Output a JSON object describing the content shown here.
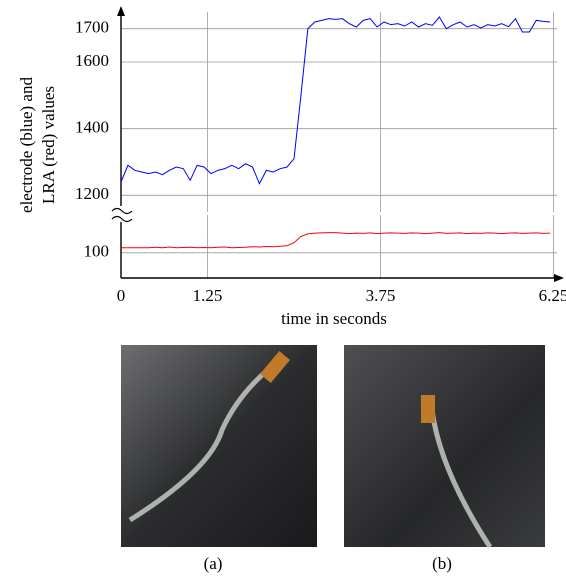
{
  "chart_data": [
    {
      "type": "line",
      "y_label": [
        "electrode (blue) and",
        "LRA (red) values"
      ],
      "x": [
        0,
        0.1,
        0.2,
        0.3,
        0.4,
        0.5,
        0.6,
        0.7,
        0.8,
        0.9,
        1.0,
        1.1,
        1.2,
        1.3,
        1.4,
        1.5,
        1.6,
        1.7,
        1.8,
        1.9,
        2.0,
        2.1,
        2.2,
        2.3,
        2.4,
        2.5,
        2.6,
        2.7,
        2.8,
        2.9,
        3.0,
        3.1,
        3.2,
        3.3,
        3.4,
        3.5,
        3.6,
        3.7,
        3.8,
        3.9,
        4.0,
        4.1,
        4.2,
        4.3,
        4.4,
        4.5,
        4.6,
        4.7,
        4.8,
        4.9,
        5.0,
        5.1,
        5.2,
        5.3,
        5.4,
        5.5,
        5.6,
        5.7,
        5.8,
        5.9,
        6.0,
        6.1,
        6.2
      ],
      "series": [
        {
          "color": "#0000ff",
          "values": [
            1240,
            1290,
            1275,
            1270,
            1265,
            1270,
            1262,
            1275,
            1285,
            1280,
            1245,
            1290,
            1285,
            1265,
            1275,
            1280,
            1290,
            1280,
            1295,
            1285,
            1235,
            1275,
            1270,
            1280,
            1285,
            1310,
            1500,
            1700,
            1720,
            1725,
            1730,
            1728,
            1730,
            1715,
            1705,
            1725,
            1730,
            1705,
            1720,
            1712,
            1715,
            1708,
            1720,
            1705,
            1715,
            1710,
            1735,
            1700,
            1712,
            1720,
            1705,
            1712,
            1702,
            1712,
            1708,
            1715,
            1706,
            1730,
            1690,
            1690,
            1725,
            1722,
            1720
          ]
        }
      ],
      "xlim": [
        0,
        6.3
      ],
      "xticks": [
        1.25,
        3.75,
        6.25
      ],
      "ylim": [
        1150,
        1750
      ],
      "yticks": [
        1200,
        1400,
        1600,
        1700
      ],
      "grid": true
    },
    {
      "type": "line",
      "x_label": "time in seconds",
      "x": [
        0,
        0.1,
        0.2,
        0.3,
        0.4,
        0.5,
        0.6,
        0.7,
        0.8,
        0.9,
        1.0,
        1.1,
        1.2,
        1.3,
        1.4,
        1.5,
        1.6,
        1.7,
        1.8,
        1.9,
        2.0,
        2.1,
        2.2,
        2.3,
        2.4,
        2.5,
        2.6,
        2.7,
        2.8,
        2.9,
        3.0,
        3.1,
        3.2,
        3.3,
        3.4,
        3.5,
        3.6,
        3.7,
        3.8,
        3.9,
        4.0,
        4.1,
        4.2,
        4.3,
        4.4,
        4.5,
        4.6,
        4.7,
        4.8,
        4.9,
        5.0,
        5.1,
        5.2,
        5.3,
        5.4,
        5.5,
        5.6,
        5.7,
        5.8,
        5.9,
        6.0,
        6.1,
        6.2
      ],
      "series": [
        {
          "color": "#ff0000",
          "values": [
            102,
            102,
            102,
            102,
            102,
            102.2,
            102,
            102.3,
            102,
            102.1,
            102.2,
            102,
            102.1,
            102,
            102.2,
            102.3,
            102,
            102.1,
            102.2,
            102.4,
            102.3,
            102.5,
            102.4,
            102.6,
            102.8,
            104,
            106.5,
            107.5,
            107.8,
            107.9,
            108,
            108,
            107.8,
            107.6,
            107.8,
            107.7,
            107.9,
            107.6,
            107.8,
            107.9,
            107.8,
            107.7,
            107.9,
            107.8,
            107.6,
            107.8,
            108,
            107.7,
            107.8,
            107.9,
            107.6,
            107.8,
            107.7,
            107.9,
            107.8,
            107.6,
            107.8,
            107.9,
            107.7,
            107.8,
            107.9,
            107.7,
            107.8
          ]
        }
      ],
      "xlim": [
        0,
        6.3
      ],
      "xticks": [
        0,
        1.25,
        3.75,
        6.25
      ],
      "ylim": [
        90,
        115
      ],
      "yticks": [
        100
      ],
      "grid": true
    }
  ],
  "panels": [
    {
      "caption": "(a)"
    },
    {
      "caption": "(b)"
    }
  ]
}
